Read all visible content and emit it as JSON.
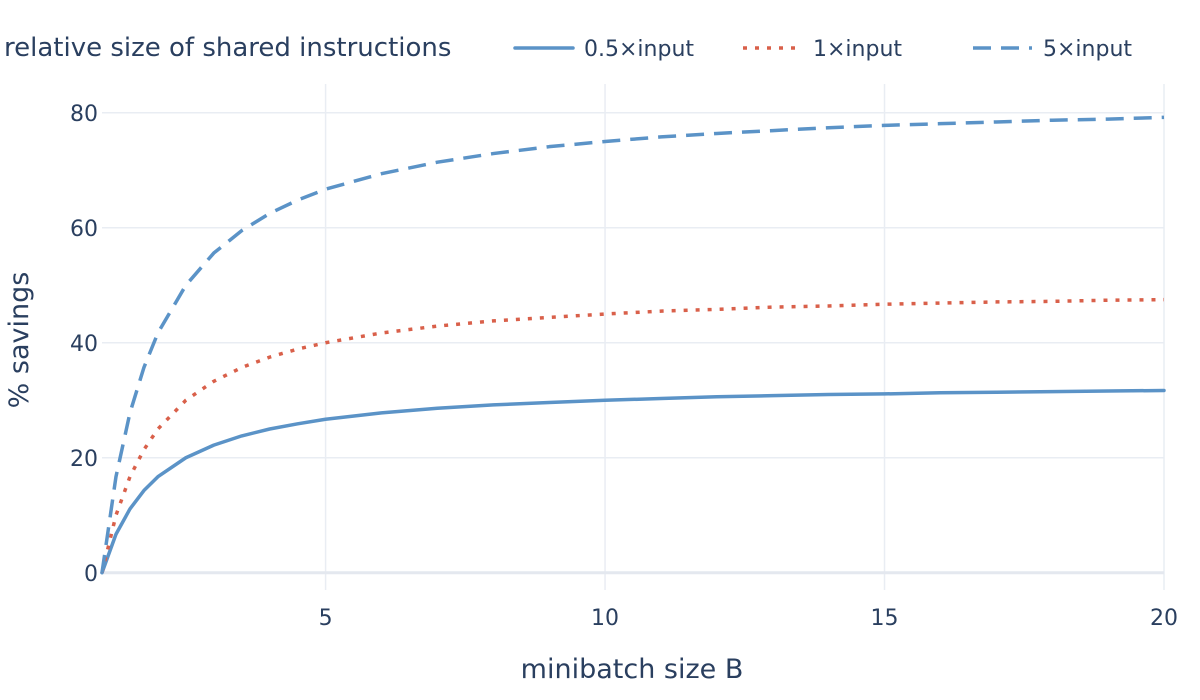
{
  "chart_data": {
    "type": "line",
    "title": "",
    "xlabel": "minibatch size B",
    "ylabel": "% savings",
    "xlim": [
      1,
      20
    ],
    "ylim": [
      -3,
      85
    ],
    "x_ticks": [
      5,
      10,
      15,
      20
    ],
    "y_ticks": [
      0,
      20,
      40,
      60,
      80
    ],
    "grid": true,
    "legend": {
      "title": "relative size of shared instructions",
      "placement": "top"
    },
    "x": [
      1,
      1.25,
      1.5,
      1.75,
      2,
      2.5,
      3,
      3.5,
      4,
      4.5,
      5,
      6,
      7,
      8,
      9,
      10,
      11,
      12,
      13,
      14,
      15,
      16,
      17,
      18,
      19,
      20
    ],
    "series": [
      {
        "name": "0.5×input",
        "color": "#5b93c7",
        "dash": "solid",
        "values": [
          0.0,
          6.7,
          11.1,
          14.3,
          16.7,
          20.0,
          22.2,
          23.8,
          25.0,
          25.9,
          26.7,
          27.8,
          28.6,
          29.2,
          29.6,
          30.0,
          30.3,
          30.6,
          30.8,
          31.0,
          31.1,
          31.3,
          31.4,
          31.5,
          31.6,
          31.7
        ]
      },
      {
        "name": "1×input",
        "color": "#d9604a",
        "dash": "dot",
        "values": [
          0.0,
          10.0,
          16.7,
          21.4,
          25.0,
          30.0,
          33.3,
          35.7,
          37.5,
          38.9,
          40.0,
          41.7,
          42.9,
          43.8,
          44.4,
          45.0,
          45.5,
          45.8,
          46.2,
          46.4,
          46.7,
          46.9,
          47.1,
          47.2,
          47.4,
          47.5
        ]
      },
      {
        "name": "5×input",
        "color": "#5b93c7",
        "dash": "dash",
        "values": [
          0.0,
          16.7,
          27.8,
          35.7,
          41.7,
          50.0,
          55.6,
          59.5,
          62.5,
          64.8,
          66.7,
          69.4,
          71.4,
          72.9,
          74.1,
          75.0,
          75.8,
          76.4,
          76.9,
          77.4,
          77.8,
          78.1,
          78.4,
          78.7,
          78.9,
          79.2
        ]
      }
    ]
  }
}
